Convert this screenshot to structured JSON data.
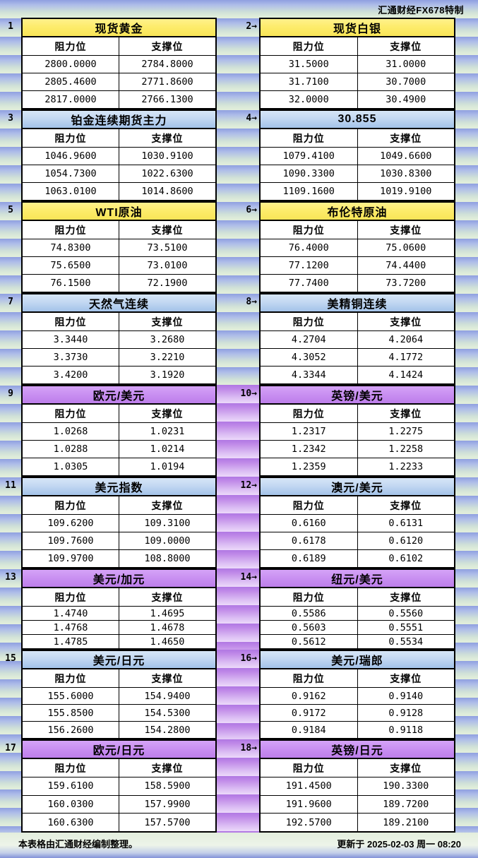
{
  "watermark": "汇通财经FX678特制",
  "footer": {
    "left": "本表格由汇通财经编制整理。",
    "right": "更新于 2025-02-03 周一 08:20"
  },
  "palette": {
    "header_yellow": "#fbe96c",
    "header_blue": "#b9d4ef",
    "header_purple": "#c88ff0",
    "gutter_purple": "#c797ee",
    "stripe_blue": "#9fafe5",
    "stripe_green": "#dcead9"
  },
  "chart_data": {
    "type": "table",
    "columns": [
      "阻力位",
      "支撑位"
    ],
    "tables": [
      {
        "no": "1",
        "title": "现货黄金",
        "theme": "yellow",
        "rows": [
          [
            "2800.0000",
            "2784.8000"
          ],
          [
            "2805.4600",
            "2771.8600"
          ],
          [
            "2817.0000",
            "2766.1300"
          ]
        ]
      },
      {
        "no": "2→",
        "title": "现货白银",
        "theme": "yellow",
        "gutter_theme": "stripes",
        "rows": [
          [
            "31.5000",
            "31.0000"
          ],
          [
            "31.7100",
            "30.7000"
          ],
          [
            "32.0000",
            "30.4900"
          ]
        ]
      },
      {
        "no": "3",
        "title": "铂金连续期货主力",
        "theme": "blue",
        "rows": [
          [
            "1046.9600",
            "1030.9100"
          ],
          [
            "1054.7300",
            "1022.6300"
          ],
          [
            "1063.0100",
            "1014.8600"
          ]
        ]
      },
      {
        "no": "4→",
        "title": "30.855",
        "theme": "blue",
        "gutter_theme": "stripes",
        "rows": [
          [
            "1079.4100",
            "1049.6600"
          ],
          [
            "1090.3300",
            "1030.8300"
          ],
          [
            "1109.1600",
            "1019.9100"
          ]
        ]
      },
      {
        "no": "5",
        "title": "WTI原油",
        "theme": "yellow",
        "rows": [
          [
            "74.8300",
            "73.5100"
          ],
          [
            "75.6500",
            "73.0100"
          ],
          [
            "76.1500",
            "72.1900"
          ]
        ]
      },
      {
        "no": "6→",
        "title": "布伦特原油",
        "theme": "yellow",
        "gutter_theme": "stripes",
        "rows": [
          [
            "76.4000",
            "75.0600"
          ],
          [
            "77.1200",
            "74.4400"
          ],
          [
            "77.7400",
            "73.7200"
          ]
        ]
      },
      {
        "no": "7",
        "title": "天然气连续",
        "theme": "blue",
        "rows": [
          [
            "3.3440",
            "3.2680"
          ],
          [
            "3.3730",
            "3.2210"
          ],
          [
            "3.4200",
            "3.1920"
          ]
        ]
      },
      {
        "no": "8→",
        "title": "美精铜连续",
        "theme": "blue",
        "gutter_theme": "stripes",
        "rows": [
          [
            "4.2704",
            "4.2064"
          ],
          [
            "4.3052",
            "4.1772"
          ],
          [
            "4.3344",
            "4.1424"
          ]
        ]
      },
      {
        "no": "9",
        "title": "欧元/美元",
        "theme": "purple",
        "rows": [
          [
            "1.0268",
            "1.0231"
          ],
          [
            "1.0288",
            "1.0214"
          ],
          [
            "1.0305",
            "1.0194"
          ]
        ]
      },
      {
        "no": "10→",
        "title": "英镑/美元",
        "theme": "purple",
        "gutter_theme": "purple",
        "rows": [
          [
            "1.2317",
            "1.2275"
          ],
          [
            "1.2342",
            "1.2258"
          ],
          [
            "1.2359",
            "1.2233"
          ]
        ]
      },
      {
        "no": "11",
        "title": "美元指数",
        "theme": "blue",
        "rows": [
          [
            "109.6200",
            "109.3100"
          ],
          [
            "109.7600",
            "109.0000"
          ],
          [
            "109.9700",
            "108.8000"
          ]
        ]
      },
      {
        "no": "12→",
        "title": "澳元/美元",
        "theme": "blue",
        "gutter_theme": "purple",
        "rows": [
          [
            "0.6160",
            "0.6131"
          ],
          [
            "0.6178",
            "0.6120"
          ],
          [
            "0.6189",
            "0.6102"
          ]
        ]
      },
      {
        "no": "13",
        "title": "美元/加元",
        "theme": "purple",
        "rows": [
          [
            "1.4740",
            "1.4695"
          ],
          [
            "1.4768",
            "1.4678"
          ],
          [
            "1.4785",
            "1.4650"
          ]
        ]
      },
      {
        "no": "14→",
        "title": "纽元/美元",
        "theme": "purple",
        "gutter_theme": "purple",
        "rows": [
          [
            "0.5586",
            "0.5560"
          ],
          [
            "0.5603",
            "0.5551"
          ],
          [
            "0.5612",
            "0.5534"
          ]
        ]
      },
      {
        "no": "15",
        "title": "美元/日元",
        "theme": "blue",
        "rows": [
          [
            "155.6000",
            "154.9400"
          ],
          [
            "155.8500",
            "154.5300"
          ],
          [
            "156.2600",
            "154.2800"
          ]
        ]
      },
      {
        "no": "16→",
        "title": "美元/瑞郎",
        "theme": "blue",
        "gutter_theme": "purple",
        "rows": [
          [
            "0.9162",
            "0.9140"
          ],
          [
            "0.9172",
            "0.9128"
          ],
          [
            "0.9184",
            "0.9118"
          ]
        ]
      },
      {
        "no": "17",
        "title": "欧元/日元",
        "theme": "purple",
        "rows": [
          [
            "159.6100",
            "158.5900"
          ],
          [
            "160.0300",
            "157.9900"
          ],
          [
            "160.6300",
            "157.5700"
          ]
        ]
      },
      {
        "no": "18→",
        "title": "英镑/日元",
        "theme": "purple",
        "gutter_theme": "purple",
        "rows": [
          [
            "191.4500",
            "190.3300"
          ],
          [
            "191.9600",
            "189.7200"
          ],
          [
            "192.5700",
            "189.2100"
          ]
        ]
      }
    ]
  }
}
